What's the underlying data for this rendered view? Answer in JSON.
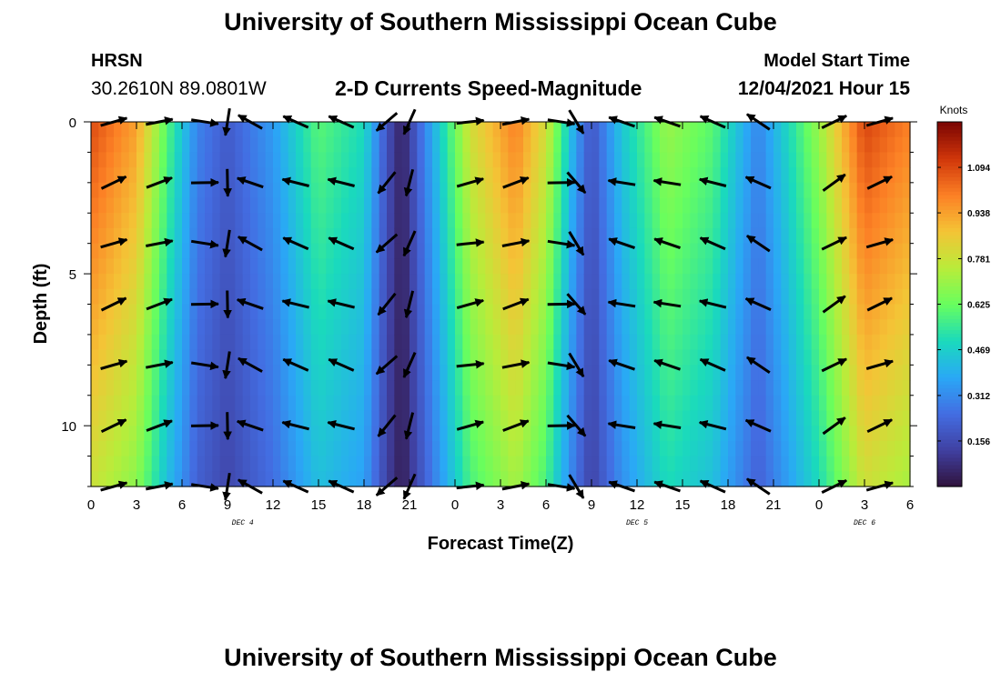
{
  "header": {
    "title": "University of Southern Mississippi Ocean Cube",
    "station": "HRSN",
    "coords": "30.2610N  89.0801W",
    "subtitle": "2-D Currents Speed-Magnitude",
    "start_label": "Model Start Time",
    "start_value": "12/04/2021 Hour 15"
  },
  "footer": {
    "title": "University of Southern Mississippi Ocean Cube"
  },
  "chart_data": {
    "type": "heatmap",
    "title": "2-D Currents Speed-Magnitude",
    "xlabel": "Forecast Time(Z)",
    "ylabel": "Depth (ft)",
    "x_tick_labels": [
      "0",
      "3",
      "6",
      "9",
      "12",
      "15",
      "18",
      "21",
      "0",
      "3",
      "6",
      "9",
      "12",
      "15",
      "18",
      "21",
      "0",
      "3",
      "6"
    ],
    "x_range_hours": [
      0,
      54
    ],
    "day_labels": [
      {
        "text": "DEC 4",
        "hour": 10
      },
      {
        "text": "DEC 5",
        "hour": 36
      },
      {
        "text": "DEC 6",
        "hour": 51
      }
    ],
    "y_tick_labels": [
      "0",
      "5",
      "10"
    ],
    "y_ticks": [
      0,
      5,
      10
    ],
    "ylim": [
      0,
      12
    ],
    "y_inverted": true,
    "colorbar": {
      "unit": "Knots",
      "min": 0.0,
      "max": 1.25,
      "tick_labels": [
        "1.094",
        "0.938",
        "0.781",
        "0.625",
        "0.469",
        "0.312",
        "0.156"
      ],
      "tick_values": [
        1.094,
        0.938,
        0.781,
        0.625,
        0.469,
        0.312,
        0.156
      ],
      "colormap": "turbo"
    },
    "surface_speed_knots": [
      {
        "hour": 0,
        "speed": 1.09
      },
      {
        "hour": 3,
        "speed": 0.94
      },
      {
        "hour": 5,
        "speed": 0.6
      },
      {
        "hour": 7,
        "speed": 0.3
      },
      {
        "hour": 9,
        "speed": 0.2
      },
      {
        "hour": 12,
        "speed": 0.35
      },
      {
        "hour": 15,
        "speed": 0.6
      },
      {
        "hour": 18,
        "speed": 0.5
      },
      {
        "hour": 19.5,
        "speed": 0.18
      },
      {
        "hour": 20.5,
        "speed": 0.04
      },
      {
        "hour": 22,
        "speed": 0.3
      },
      {
        "hour": 25,
        "speed": 0.8
      },
      {
        "hour": 28,
        "speed": 1.0
      },
      {
        "hour": 30,
        "speed": 0.8
      },
      {
        "hour": 32,
        "speed": 0.35
      },
      {
        "hour": 33,
        "speed": 0.18
      },
      {
        "hour": 35,
        "speed": 0.45
      },
      {
        "hour": 38,
        "speed": 0.7
      },
      {
        "hour": 41,
        "speed": 0.6
      },
      {
        "hour": 44,
        "speed": 0.3
      },
      {
        "hour": 48,
        "speed": 0.7
      },
      {
        "hour": 51,
        "speed": 1.1
      },
      {
        "hour": 54,
        "speed": 1.0
      }
    ],
    "vectors": {
      "hours": [
        1.5,
        4.5,
        7.5,
        9,
        10.5,
        13.5,
        16.5,
        19.5,
        21,
        25,
        28,
        31,
        32,
        35,
        38,
        41,
        44,
        49,
        52
      ],
      "depths": [
        0,
        2,
        4,
        6,
        8,
        10,
        12
      ],
      "surface_angles_deg": [
        20,
        15,
        -5,
        -95,
        155,
        160,
        160,
        -135,
        -110,
        10,
        15,
        -5,
        -55,
        165,
        165,
        160,
        150,
        30,
        20
      ]
    }
  }
}
